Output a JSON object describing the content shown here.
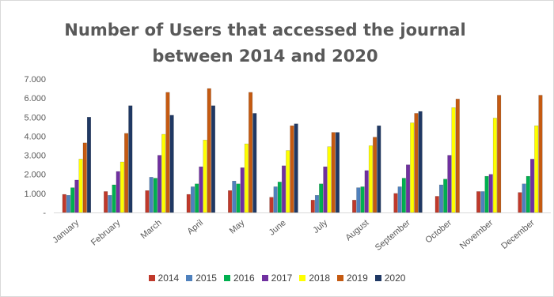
{
  "chart_data": {
    "type": "bar",
    "title_line1": "Number of Users that accessed the journal",
    "title_line2": "between 2014 and 2020",
    "xlabel": "",
    "ylabel": "",
    "ylim": [
      0,
      7000
    ],
    "yticks": [
      0,
      1000,
      2000,
      3000,
      4000,
      5000,
      6000,
      7000
    ],
    "ytick_labels": [
      "-",
      "1.000",
      "2.000",
      "3.000",
      "4.000",
      "5.000",
      "6.000",
      "7.000"
    ],
    "grid": false,
    "legend_position": "bottom",
    "categories": [
      "January",
      "February",
      "March",
      "April",
      "May",
      "June",
      "July",
      "August",
      "September",
      "October",
      "November",
      "December"
    ],
    "series": [
      {
        "name": "2014",
        "color": "#c0392b",
        "values": [
          950,
          1100,
          1150,
          950,
          1150,
          800,
          650,
          650,
          1000,
          850,
          1100,
          1050
        ]
      },
      {
        "name": "2015",
        "color": "#4f81bd",
        "values": [
          900,
          900,
          1850,
          1350,
          1650,
          1350,
          900,
          1300,
          1350,
          1450,
          1100,
          1500
        ]
      },
      {
        "name": "2016",
        "color": "#00b050",
        "values": [
          1300,
          1450,
          1800,
          1500,
          1500,
          1600,
          1500,
          1350,
          1800,
          1750,
          1900,
          1900
        ]
      },
      {
        "name": "2017",
        "color": "#7030a0",
        "values": [
          1700,
          2150,
          3000,
          2400,
          2350,
          2450,
          2400,
          2200,
          2500,
          3000,
          2000,
          2800
        ]
      },
      {
        "name": "2018",
        "color": "#ffff00",
        "values": [
          2800,
          2650,
          4100,
          3800,
          3600,
          3250,
          3450,
          3500,
          4700,
          5500,
          4950,
          4550
        ]
      },
      {
        "name": "2019",
        "color": "#c55a11",
        "values": [
          3650,
          4150,
          6300,
          6500,
          6300,
          4550,
          4200,
          3950,
          5200,
          5950,
          6150,
          6150
        ]
      },
      {
        "name": "2020",
        "color": "#1f3864",
        "values": [
          5000,
          5600,
          5100,
          5600,
          5200,
          4650,
          4200,
          4550,
          5300,
          0,
          0,
          0
        ]
      }
    ]
  }
}
